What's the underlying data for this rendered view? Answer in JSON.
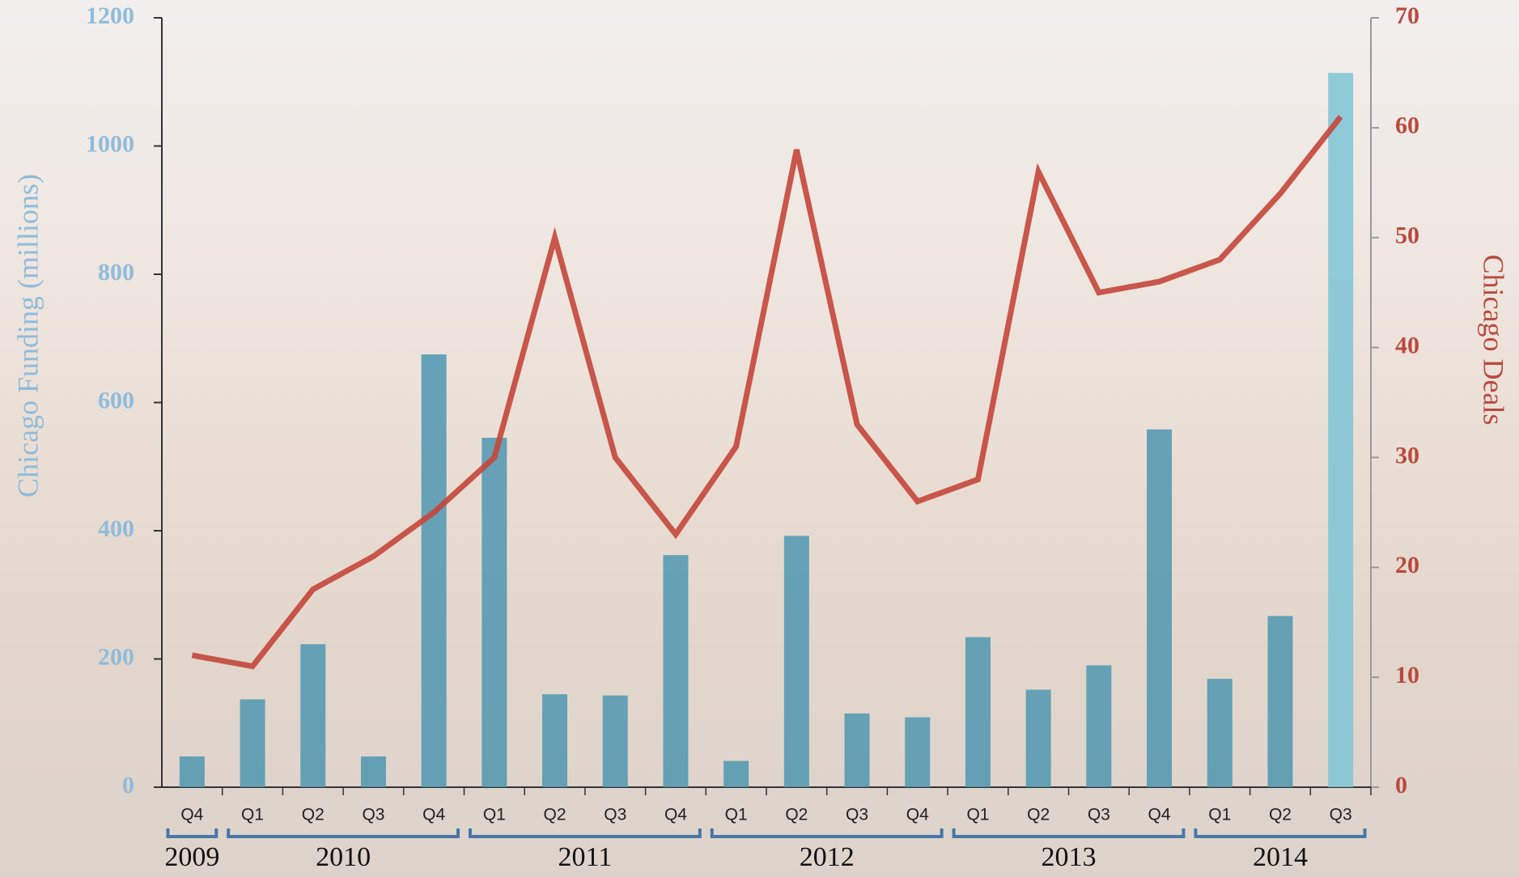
{
  "chart_data": {
    "type": "bar-line",
    "category_groups": [
      {
        "label": "2009",
        "categories": [
          "Q4"
        ]
      },
      {
        "label": "2010",
        "categories": [
          "Q1",
          "Q2",
          "Q3",
          "Q4"
        ]
      },
      {
        "label": "2011",
        "categories": [
          "Q1",
          "Q2",
          "Q3",
          "Q4"
        ]
      },
      {
        "label": "2012",
        "categories": [
          "Q1",
          "Q2",
          "Q3",
          "Q4"
        ]
      },
      {
        "label": "2013",
        "categories": [
          "Q1",
          "Q2",
          "Q3",
          "Q4"
        ]
      },
      {
        "label": "2014",
        "categories": [
          "Q1",
          "Q2",
          "Q3"
        ]
      }
    ],
    "y_label": "Chicago Funding (millions)",
    "y2_label": "Chicago Deals",
    "ylim": [
      0,
      1200
    ],
    "yticks": [
      0,
      200,
      400,
      600,
      800,
      1000,
      1200
    ],
    "y2lim": [
      0,
      70
    ],
    "y2ticks": [
      0,
      10,
      20,
      30,
      40,
      50,
      60,
      70
    ],
    "series": [
      {
        "type": "bar",
        "color": "#4f97b0",
        "values": [
          48,
          137,
          223,
          48,
          675,
          545,
          145,
          143,
          362,
          41,
          392,
          115,
          109,
          234,
          152,
          190,
          558,
          169,
          267,
          1114
        ]
      },
      {
        "type": "line",
        "axis": "y2",
        "color": "#c4463a",
        "values": [
          12,
          11,
          18,
          21,
          25,
          30,
          50,
          30,
          23,
          31,
          58,
          33,
          26,
          28,
          56,
          45,
          46,
          48,
          54,
          61
        ]
      }
    ]
  }
}
